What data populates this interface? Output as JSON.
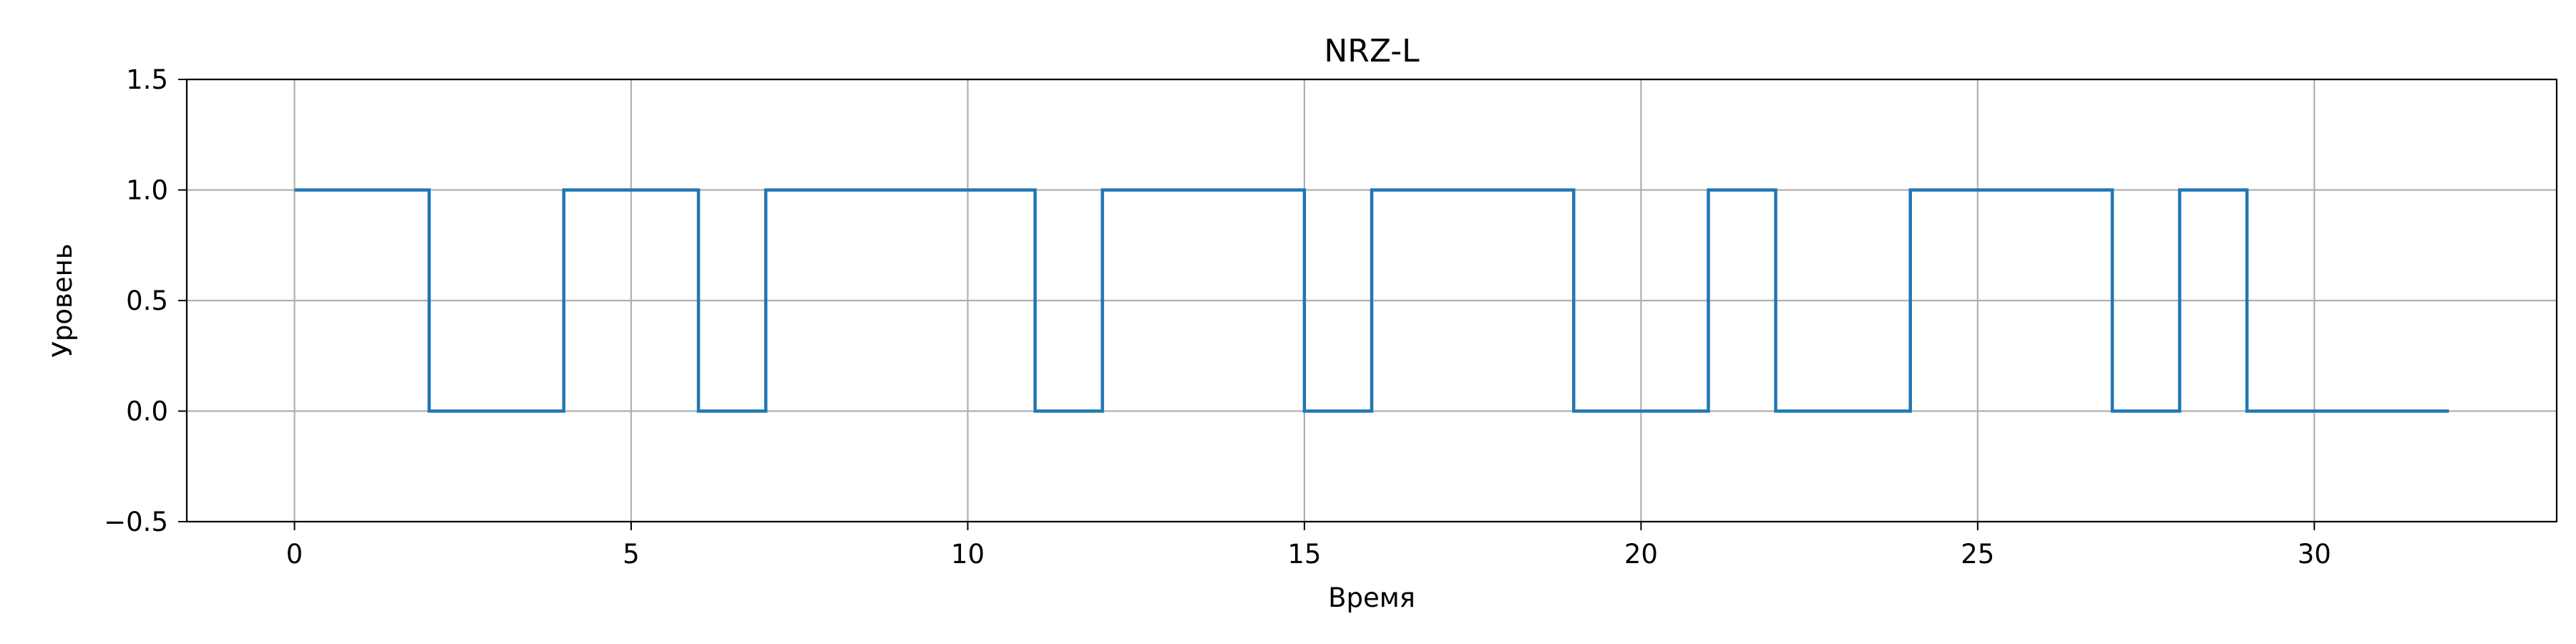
{
  "chart_data": {
    "type": "line",
    "title": "NRZ-L",
    "xlabel": "Время",
    "ylabel": "Уровень",
    "xlim": [
      -1.6,
      33.6
    ],
    "ylim": [
      -0.5,
      1.5
    ],
    "xticks": [
      0,
      5,
      10,
      15,
      20,
      25,
      30
    ],
    "yticks": [
      -0.5,
      0.0,
      0.5,
      1.0,
      1.5
    ],
    "ytick_labels": [
      "−0.5",
      "0.0",
      "0.5",
      "1.0",
      "1.5"
    ],
    "grid": true,
    "line_color": "#1f77b4",
    "step": "post",
    "bits": [
      1,
      1,
      0,
      0,
      1,
      1,
      0,
      1,
      1,
      1,
      1,
      0,
      1,
      1,
      1,
      0,
      1,
      1,
      1,
      0,
      0,
      1,
      0,
      0,
      1,
      1,
      1,
      0,
      1,
      0,
      0,
      0
    ],
    "end_x": 32
  }
}
